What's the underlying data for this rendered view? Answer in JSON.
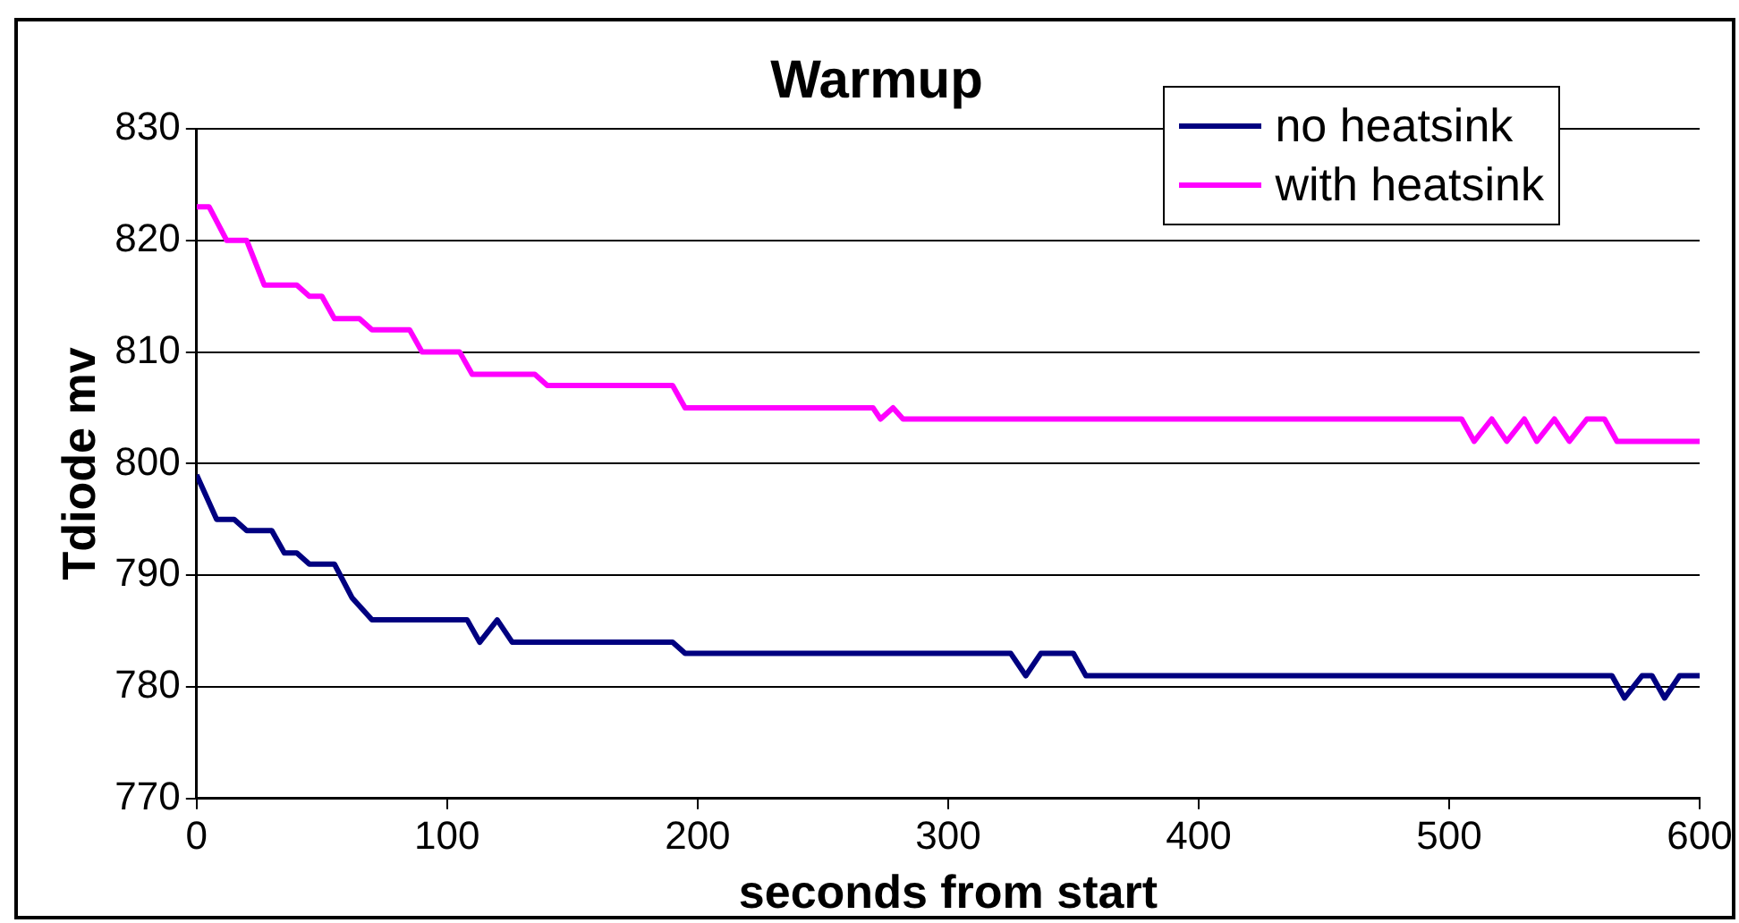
{
  "chart_data": {
    "type": "line",
    "title": "Warmup",
    "xlabel": "seconds from start",
    "ylabel": "Tdiode mv",
    "xlim": [
      0,
      600
    ],
    "xticks": [
      0,
      100,
      200,
      300,
      400,
      500,
      600
    ],
    "ylim": [
      770,
      830
    ],
    "yticks": [
      770,
      780,
      790,
      800,
      810,
      820,
      830
    ],
    "grid": "y",
    "legend": "top right",
    "marker": "none",
    "line_style": "solid",
    "series": [
      {
        "name": "no heatsink",
        "color": "#000080",
        "x": [
          0,
          8,
          15,
          20,
          30,
          35,
          40,
          45,
          55,
          62,
          70,
          108,
          113,
          120,
          126,
          190,
          195,
          325,
          331,
          337,
          350,
          355,
          565,
          570,
          577,
          581,
          586,
          592,
          600
        ],
        "values": [
          799,
          795,
          795,
          794,
          794,
          792,
          792,
          791,
          791,
          788,
          786,
          786,
          784,
          786,
          784,
          784,
          783,
          783,
          781,
          783,
          783,
          781,
          781,
          779,
          781,
          781,
          779,
          781,
          781
        ]
      },
      {
        "name": "with heatsink",
        "color": "#ff00ff",
        "x": [
          0,
          5,
          12,
          20,
          27,
          40,
          45,
          50,
          55,
          65,
          70,
          85,
          90,
          105,
          110,
          135,
          140,
          190,
          195,
          270,
          273,
          278,
          282,
          505,
          510,
          517,
          523,
          530,
          535,
          542,
          548,
          555,
          562,
          567,
          600
        ],
        "values": [
          823,
          823,
          820,
          820,
          816,
          816,
          815,
          815,
          813,
          813,
          812,
          812,
          810,
          810,
          808,
          808,
          807,
          807,
          805,
          805,
          804,
          805,
          804,
          804,
          802,
          804,
          802,
          804,
          802,
          804,
          802,
          804,
          804,
          802,
          802
        ]
      }
    ]
  }
}
